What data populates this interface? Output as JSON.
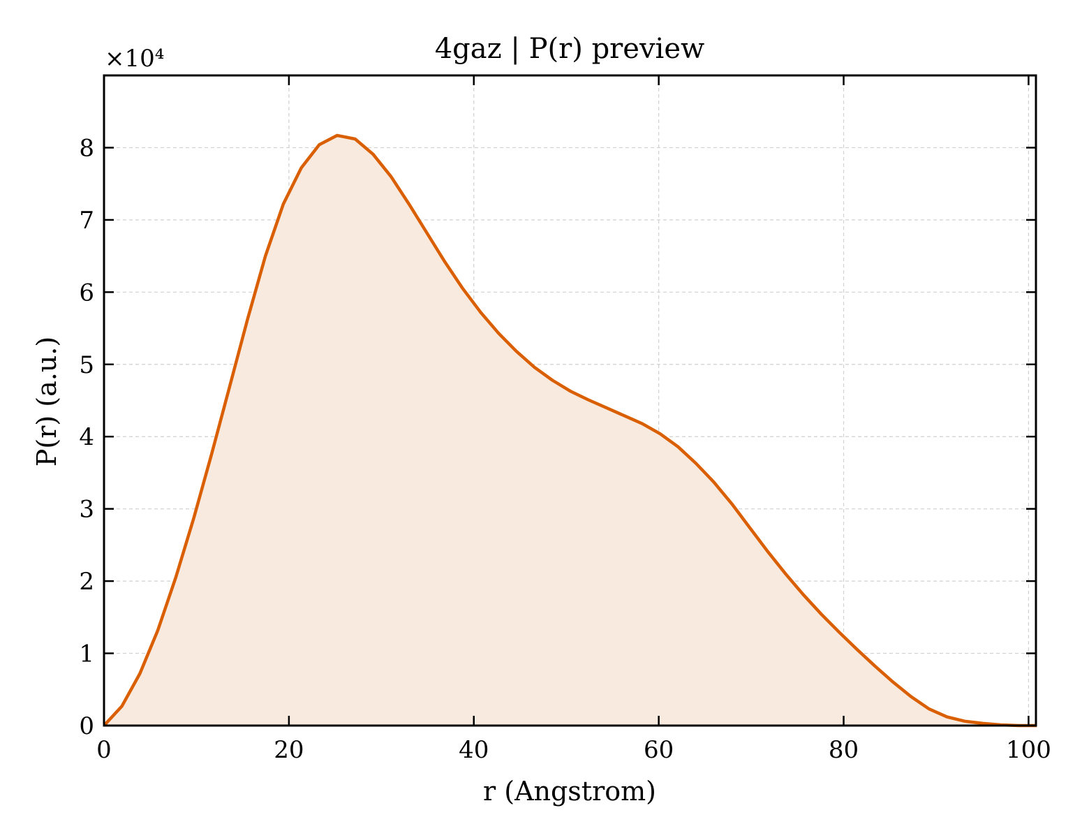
{
  "chart_data": {
    "type": "area",
    "title": "4gaz | P(r) preview",
    "xlabel": "r (Angstrom)",
    "ylabel": "P(r) (a.u.)",
    "y_multiplier_label": "×10⁴",
    "xlim": [
      0,
      100.8
    ],
    "ylim": [
      0,
      9.0
    ],
    "y_unit_scale": 10000,
    "x_ticks": [
      0,
      20,
      40,
      60,
      80,
      100
    ],
    "y_ticks": [
      0,
      1,
      2,
      3,
      4,
      5,
      6,
      7,
      8
    ],
    "grid": true,
    "legend": "none",
    "colors": {
      "line": "#d95f02",
      "fill": "#f9eadf",
      "grid": "#d0d0d0",
      "axis": "#000000"
    },
    "series": [
      {
        "x": [
          0,
          1.94,
          3.88,
          5.82,
          7.76,
          9.7,
          11.64,
          13.58,
          15.52,
          17.46,
          19.4,
          21.34,
          23.28,
          25.22,
          27.16,
          29.1,
          31.04,
          32.98,
          34.92,
          36.86,
          38.8,
          40.74,
          42.68,
          44.62,
          46.56,
          48.5,
          50.44,
          52.38,
          54.32,
          56.26,
          58.2,
          60.14,
          62.08,
          64.02,
          65.96,
          67.9,
          69.84,
          71.78,
          73.72,
          75.66,
          77.6,
          79.54,
          81.48,
          83.42,
          85.36,
          87.3,
          89.24,
          91.18,
          93.12,
          95.06,
          97.0,
          98.94,
          100.88
        ],
        "y": [
          0,
          0.27,
          0.72,
          1.32,
          2.05,
          2.87,
          3.76,
          4.69,
          5.62,
          6.5,
          7.22,
          7.72,
          8.04,
          8.17,
          8.12,
          7.91,
          7.6,
          7.22,
          6.82,
          6.42,
          6.05,
          5.72,
          5.43,
          5.18,
          4.96,
          4.78,
          4.63,
          4.51,
          4.4,
          4.29,
          4.18,
          4.04,
          3.86,
          3.63,
          3.37,
          3.07,
          2.74,
          2.41,
          2.1,
          1.81,
          1.54,
          1.29,
          1.05,
          0.82,
          0.6,
          0.4,
          0.23,
          0.12,
          0.06,
          0.03,
          0.01,
          0.0,
          0.0
        ]
      }
    ]
  }
}
